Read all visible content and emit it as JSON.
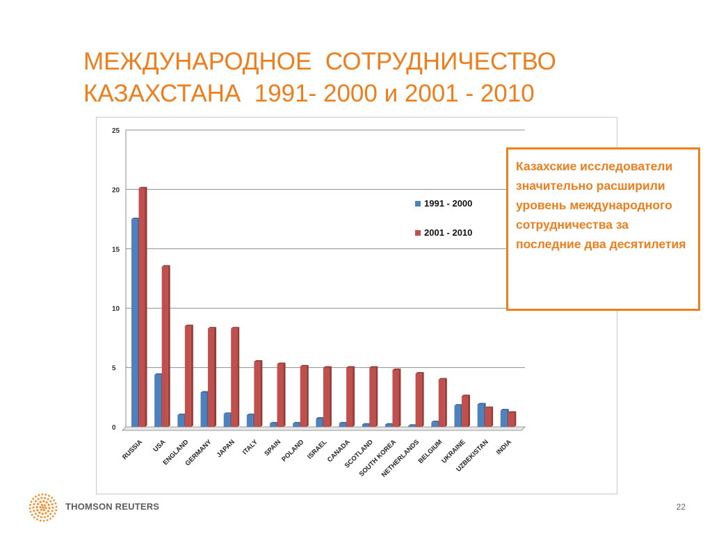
{
  "slide": {
    "title_line1": "МЕЖДУНАРОДНОЕ  СОТРУДНИЧЕСТВО",
    "title_line2": "КАЗАХСТАНА  1991- 2000 и 2001 - 2010",
    "note": "Казахские исследователи значительно расширили уровень международного сотрудничества за последние два десятилетия",
    "brand": "THOMSON REUTERS",
    "page_number": "22"
  },
  "colors": {
    "title": "#ee7d1c",
    "note_border": "#f07f1a",
    "series_1991_2000": "#4f81bd",
    "series_2001_2010": "#c0504d"
  },
  "chart_data": {
    "type": "bar",
    "title": "",
    "xlabel": "",
    "ylabel": "",
    "ylim": [
      0,
      25
    ],
    "yticks": [
      0,
      5,
      10,
      15,
      20,
      25
    ],
    "grid": true,
    "legend_position": "top-right",
    "categories": [
      "RUSSIA",
      "USA",
      "ENGLAND",
      "GERMANY",
      "JAPAN",
      "ITALY",
      "SPAIN",
      "POLAND",
      "ISRAEL",
      "CANADA",
      "SCOTLAND",
      "SOUTH KOREA",
      "NETHERLANDS",
      "BELGIUM",
      "UKRAINE",
      "UZBEKISTAN",
      "INDIA"
    ],
    "series": [
      {
        "name": "1991 - 2000",
        "color": "#4f81bd",
        "values": [
          17.5,
          4.4,
          1.0,
          2.9,
          1.1,
          1.0,
          0.3,
          0.3,
          0.7,
          0.3,
          0.2,
          0.2,
          0.1,
          0.4,
          1.8,
          1.9,
          1.4
        ]
      },
      {
        "name": "2001 - 2010",
        "color": "#c0504d",
        "values": [
          20.1,
          13.5,
          8.5,
          8.3,
          8.3,
          5.5,
          5.3,
          5.1,
          5.0,
          5.0,
          5.0,
          4.8,
          4.5,
          4.0,
          2.6,
          1.6,
          1.2
        ]
      }
    ]
  }
}
